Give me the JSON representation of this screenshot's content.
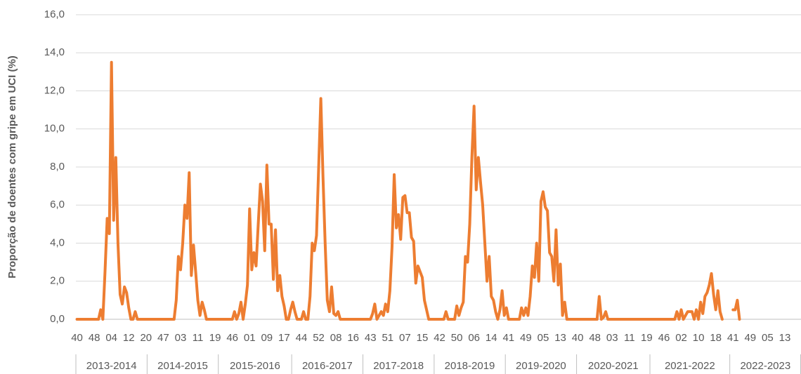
{
  "chart_data": {
    "type": "line",
    "ylabel": "Proporção de doentes com gripe em UCI (%)",
    "color": "#ed7d31",
    "grid": true,
    "ylim": [
      0,
      16
    ],
    "yticks": [
      {
        "value": 0,
        "label": "0,0"
      },
      {
        "value": 2,
        "label": "2,0"
      },
      {
        "value": 4,
        "label": "4,0"
      },
      {
        "value": 6,
        "label": "6,0"
      },
      {
        "value": 8,
        "label": "8,0"
      },
      {
        "value": 10,
        "label": "10,0"
      },
      {
        "value": 12,
        "label": "12,0"
      },
      {
        "value": 14,
        "label": "14,0"
      },
      {
        "value": 16,
        "label": "16,0"
      }
    ],
    "groups": [
      {
        "name": "2013-2014",
        "categories": [
          "40",
          null,
          null,
          null,
          null,
          null,
          null,
          null,
          "48",
          null,
          null,
          null,
          null,
          null,
          null,
          null,
          "04",
          null,
          null,
          null,
          null,
          null,
          null,
          null,
          "12",
          null,
          null,
          null,
          null,
          null,
          null,
          null,
          "20"
        ],
        "values": [
          0,
          0,
          0,
          0,
          0,
          0,
          0,
          0,
          0,
          0,
          0,
          0.5,
          0,
          2.5,
          5.3,
          4.5,
          13.5,
          5.2,
          8.5,
          4.0,
          1.3,
          0.8,
          1.7,
          1.4,
          0.6,
          0,
          0,
          0.4,
          0,
          0,
          0,
          0,
          0
        ]
      },
      {
        "name": "2014-2015",
        "categories": [
          null,
          null,
          null,
          null,
          null,
          null,
          null,
          "47",
          null,
          null,
          null,
          null,
          null,
          null,
          null,
          "03",
          null,
          null,
          null,
          null,
          null,
          null,
          null,
          "11",
          null,
          null,
          null,
          null,
          null,
          null,
          null,
          "19",
          null
        ],
        "values": [
          0,
          0,
          0,
          0,
          0,
          0,
          0,
          0,
          0,
          0,
          0,
          0,
          0,
          1.0,
          3.3,
          2.6,
          4.0,
          6.0,
          5.3,
          7.7,
          2.3,
          3.9,
          2.5,
          1.0,
          0.2,
          0.9,
          0.5,
          0,
          0,
          0,
          0,
          0,
          0
        ]
      },
      {
        "name": "2015-2016",
        "categories": [
          null,
          null,
          null,
          null,
          null,
          null,
          "46",
          null,
          null,
          null,
          null,
          null,
          null,
          null,
          "01",
          null,
          null,
          null,
          null,
          null,
          null,
          null,
          "09",
          null,
          null,
          null,
          null,
          null,
          null,
          null,
          "17",
          null,
          null,
          null
        ],
        "values": [
          0,
          0,
          0,
          0,
          0,
          0,
          0,
          0.4,
          0,
          0.3,
          0.9,
          0,
          0.8,
          1.8,
          5.8,
          2.6,
          3.5,
          2.8,
          5.0,
          7.1,
          6.2,
          3.6,
          8.1,
          5.0,
          5.0,
          2.1,
          4.7,
          1.5,
          2.3,
          1.2,
          0.7,
          0,
          0,
          0.5
        ]
      },
      {
        "name": "2016-2017",
        "categories": [
          null,
          null,
          null,
          null,
          "44",
          null,
          null,
          null,
          null,
          null,
          null,
          null,
          "52",
          null,
          null,
          null,
          null,
          null,
          null,
          null,
          "08",
          null,
          null,
          null,
          null,
          null,
          null,
          null,
          "16",
          null,
          null,
          null,
          null
        ],
        "values": [
          0.9,
          0.4,
          0,
          0,
          0,
          0.4,
          0,
          0,
          1.2,
          4.0,
          3.6,
          4.4,
          8.0,
          11.6,
          7.5,
          4.0,
          1.0,
          0.4,
          1.7,
          0.3,
          0.2,
          0.4,
          0,
          0,
          0,
          0,
          0,
          0,
          0,
          0,
          0,
          0,
          0
        ]
      },
      {
        "name": "2017-2018",
        "categories": [
          null,
          null,
          null,
          "43",
          null,
          null,
          null,
          null,
          null,
          null,
          null,
          "51",
          null,
          null,
          null,
          null,
          null,
          null,
          null,
          "07",
          null,
          null,
          null,
          null,
          null,
          null,
          null,
          "15",
          null,
          null,
          null,
          null,
          null
        ],
        "values": [
          0,
          0,
          0,
          0,
          0.3,
          0.8,
          0,
          0.2,
          0.4,
          0.2,
          0.8,
          0.4,
          1.5,
          3.8,
          7.6,
          4.8,
          5.5,
          4.2,
          6.4,
          6.5,
          5.6,
          5.6,
          4.3,
          4.1,
          1.9,
          2.8,
          2.5,
          2.2,
          1.0,
          0.5,
          0,
          0,
          0
        ]
      },
      {
        "name": "2018-2019",
        "categories": [
          null,
          null,
          "42",
          null,
          null,
          null,
          null,
          null,
          null,
          null,
          "50",
          null,
          null,
          null,
          null,
          null,
          null,
          null,
          "06",
          null,
          null,
          null,
          null,
          null,
          null,
          null,
          "14",
          null,
          null,
          null,
          null,
          null,
          null
        ],
        "values": [
          0,
          0,
          0,
          0,
          0,
          0.4,
          0,
          0,
          0,
          0,
          0.7,
          0.2,
          0.6,
          0.9,
          3.3,
          3.0,
          5.0,
          8.5,
          11.2,
          6.8,
          8.5,
          7.2,
          6.0,
          4.0,
          2.0,
          3.3,
          1.2,
          1.0,
          0.4,
          0,
          0.5,
          1.5,
          0.2
        ]
      },
      {
        "name": "2019-2020",
        "categories": [
          null,
          "41",
          null,
          null,
          null,
          null,
          null,
          null,
          null,
          "49",
          null,
          null,
          null,
          null,
          null,
          null,
          null,
          "05",
          null,
          null,
          null,
          null,
          null,
          null,
          null,
          "13",
          null,
          null,
          null,
          null,
          null,
          null,
          null
        ],
        "values": [
          0.6,
          0,
          0,
          0,
          0,
          0,
          0,
          0.6,
          0.2,
          0.6,
          0.2,
          1.2,
          2.8,
          2.2,
          4.0,
          2.0,
          6.2,
          6.7,
          5.9,
          5.7,
          3.5,
          3.3,
          2.0,
          4.7,
          1.8,
          2.9,
          0.2,
          0.9,
          0,
          0,
          0,
          0,
          0
        ]
      },
      {
        "name": "2020-2021",
        "categories": [
          "40",
          null,
          null,
          null,
          null,
          null,
          null,
          null,
          "48",
          null,
          null,
          null,
          null,
          null,
          null,
          null,
          "03",
          null,
          null,
          null,
          null,
          null,
          null,
          null,
          "11",
          null,
          null,
          null,
          null,
          null,
          null,
          null,
          "19",
          null
        ],
        "values": [
          0,
          0,
          0,
          0,
          0,
          0,
          0,
          0,
          0,
          0,
          1.2,
          0,
          0.1,
          0.4,
          0,
          0,
          0,
          0,
          0,
          0,
          0,
          0,
          0,
          0,
          0,
          0,
          0,
          0,
          0,
          0,
          0,
          0,
          0,
          0
        ]
      },
      {
        "name": "2021-2022",
        "categories": [
          null,
          null,
          null,
          null,
          null,
          null,
          "46",
          null,
          null,
          null,
          null,
          null,
          null,
          null,
          "02",
          null,
          null,
          null,
          null,
          null,
          null,
          null,
          "10",
          null,
          null,
          null,
          null,
          null,
          null,
          null,
          "18",
          null,
          null,
          null,
          null,
          null,
          null
        ],
        "values": [
          0,
          0,
          0,
          0,
          0,
          0,
          0,
          0,
          0,
          0,
          0,
          0,
          0.4,
          0,
          0.5,
          0,
          0.2,
          0.4,
          0.4,
          0.4,
          0,
          0.5,
          0,
          0.9,
          0.3,
          1.2,
          1.4,
          1.8,
          2.4,
          1.3,
          0.5,
          1.5,
          0.4,
          0,
          null,
          null,
          null
        ]
      },
      {
        "name": "2022-2023",
        "categories": [
          null,
          "41",
          null,
          null,
          null,
          null,
          null,
          null,
          null,
          "49",
          null,
          null,
          null,
          null,
          null,
          null,
          null,
          "05",
          null,
          null,
          null,
          null,
          null,
          null,
          null,
          "13",
          null,
          null,
          null,
          null,
          null,
          null,
          null
        ],
        "values": [
          null,
          0.5,
          0.5,
          1.0,
          0,
          null,
          null,
          null,
          null,
          null,
          null,
          null,
          null,
          null,
          null,
          null,
          null,
          null,
          null,
          null,
          null,
          null,
          null,
          null,
          null,
          null,
          null,
          null,
          null,
          null,
          null,
          null,
          null
        ]
      }
    ]
  }
}
